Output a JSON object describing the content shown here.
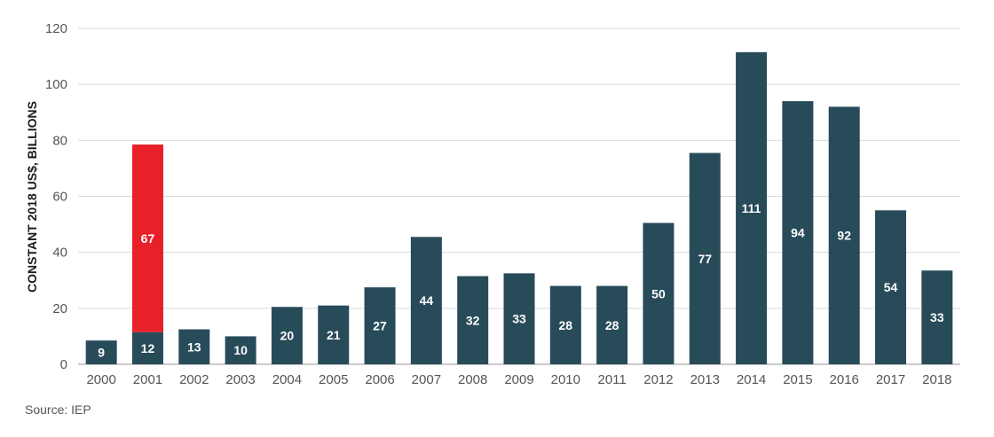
{
  "chart_data": {
    "type": "bar",
    "stacked": true,
    "ylabel": "CONSTANT 2018 US$, BILLIONS",
    "ylim": [
      0,
      120
    ],
    "yticks": [
      0,
      20,
      40,
      60,
      80,
      100,
      120
    ],
    "categories": [
      "2000",
      "2001",
      "2002",
      "2003",
      "2004",
      "2005",
      "2006",
      "2007",
      "2008",
      "2009",
      "2010",
      "2011",
      "2012",
      "2013",
      "2014",
      "2015",
      "2016",
      "2017",
      "2018"
    ],
    "series": [
      {
        "values": [
          9,
          12,
          13,
          10,
          20,
          21,
          27,
          44,
          32,
          33,
          28,
          28,
          50,
          77,
          111,
          94,
          92,
          54,
          33
        ],
        "color": "#284b5a"
      },
      {
        "values": [
          0,
          67,
          0,
          0,
          0,
          0,
          0,
          0,
          0,
          0,
          0,
          0,
          0,
          0,
          0,
          0,
          0,
          0,
          0
        ],
        "color": "#e8202a"
      }
    ],
    "bar_heights": [
      8.5,
      11.5,
      12.5,
      10,
      20.5,
      21,
      27.5,
      45.5,
      31.5,
      32.5,
      28,
      28,
      50.5,
      75.5,
      111.5,
      94,
      92,
      55,
      33.5
    ],
    "grid": true,
    "legend": "none"
  },
  "source": "Source: IEP"
}
